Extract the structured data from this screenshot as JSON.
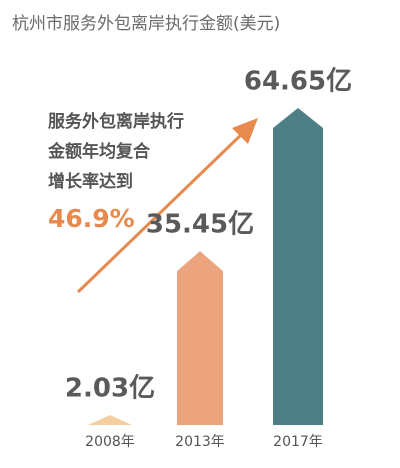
{
  "chart_data": {
    "type": "bar",
    "title": "杭州市服务外包离岸执行金额(美元)",
    "categories": [
      "2008年",
      "2013年",
      "2017年"
    ],
    "values": [
      2.03,
      35.45,
      64.65
    ],
    "value_labels": [
      "2.03亿",
      "35.45亿",
      "64.65亿"
    ],
    "colors": [
      "#f5cf9f",
      "#eba47e",
      "#4f7f86"
    ],
    "annotation": [
      "服务外包离岸执行",
      "金额年均复合",
      "增长率达到"
    ],
    "annotation_highlight": "46.9%"
  }
}
